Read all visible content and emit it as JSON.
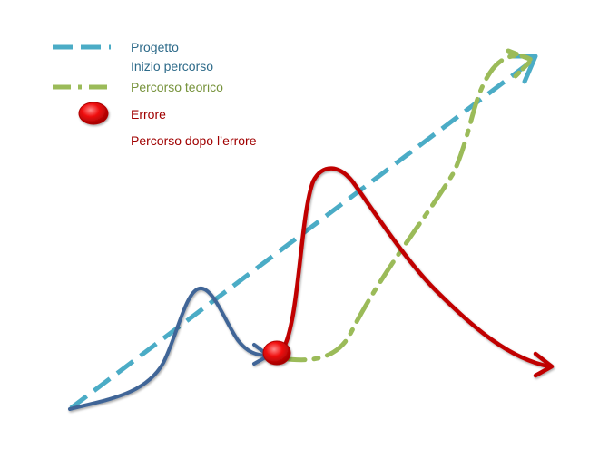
{
  "legend": {
    "items": [
      {
        "label": "Progetto",
        "style": "dashed",
        "color": "#4bacc6"
      },
      {
        "label": "Inizio percorso",
        "style": "solid",
        "color": "#4f81bd"
      },
      {
        "label": "Percorso teorico",
        "style": "dash-dot",
        "color": "#9bbb59"
      },
      {
        "label": "Errore",
        "style": "dot",
        "color": "#e30000"
      },
      {
        "label": "Percorso dopo l’errore",
        "style": "solid",
        "color": "#c00000"
      }
    ],
    "label_colors": [
      "#2e6b8a",
      "#2e6b8a",
      "#77933c",
      "#a00000",
      "#a00000"
    ]
  },
  "colors": {
    "project": "#4bacc6",
    "start": "#3f6597",
    "theoretical": "#9bbb59",
    "error": "#e30000",
    "after_error": "#c00000"
  }
}
